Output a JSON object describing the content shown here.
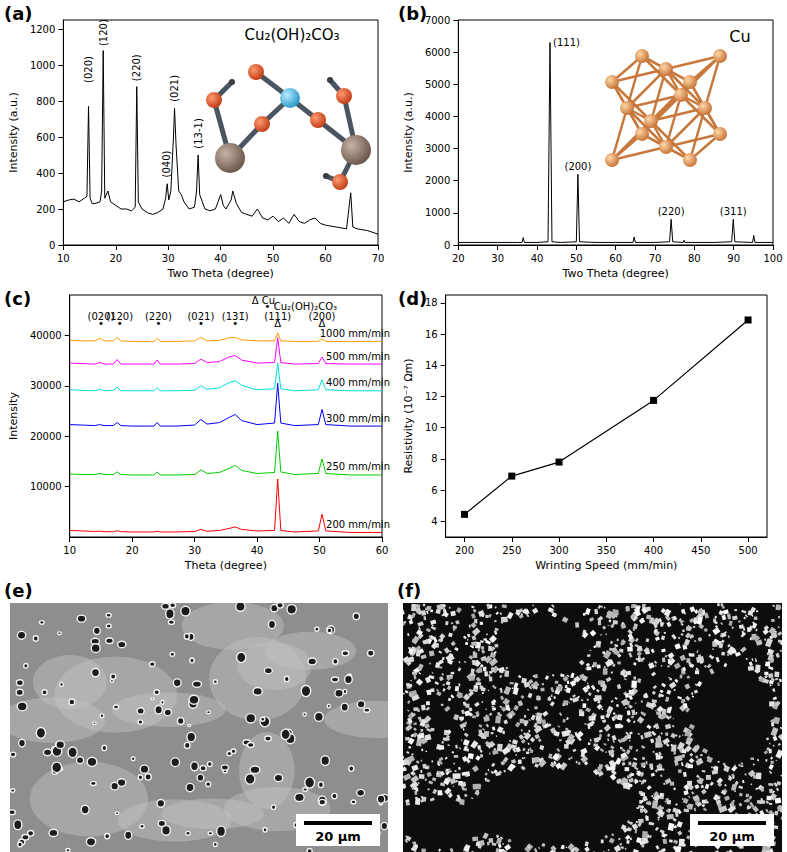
{
  "chart_data": [
    {
      "type": "line",
      "label": "(a)",
      "title": "Cu₂(OH)₂CO₃",
      "x_label": "Two Theta (degree)",
      "y_label": "Intensity (a.u.)",
      "xlim": [
        10,
        70
      ],
      "xticks": [
        10,
        20,
        30,
        40,
        50,
        60,
        70
      ],
      "ylim": [
        0,
        1250
      ],
      "yticks": [
        0,
        200,
        400,
        600,
        800,
        1000,
        1200
      ],
      "grid": false,
      "color": "#000000",
      "marker": "none",
      "line_style": "solid",
      "x": [
        10,
        11,
        12,
        13,
        14,
        14.5,
        14.8,
        15.1,
        15.5,
        16,
        17,
        17.3,
        17.6,
        17.9,
        18.5,
        19,
        20,
        21,
        22,
        23,
        23.7,
        24,
        24.3,
        25,
        26,
        27,
        28,
        29,
        29.5,
        29.8,
        30.1,
        30.5,
        31,
        31.2,
        31.5,
        32,
        32.5,
        33,
        34,
        35,
        35.4,
        35.7,
        36,
        37,
        38,
        39,
        40,
        40.5,
        41,
        42,
        42.3,
        43,
        44,
        45,
        46,
        47,
        48,
        49,
        50,
        51,
        52,
        53,
        54,
        55,
        56,
        57,
        58,
        59,
        60,
        62,
        64,
        64.8,
        65.2,
        66,
        68,
        70
      ],
      "values": [
        240,
        250,
        255,
        240,
        260,
        270,
        770,
        260,
        230,
        230,
        240,
        300,
        1080,
        260,
        300,
        240,
        220,
        200,
        200,
        190,
        210,
        880,
        240,
        200,
        180,
        170,
        180,
        200,
        260,
        340,
        250,
        300,
        600,
        760,
        550,
        300,
        280,
        240,
        200,
        210,
        300,
        500,
        280,
        200,
        190,
        200,
        280,
        220,
        200,
        250,
        300,
        230,
        180,
        170,
        160,
        200,
        150,
        140,
        160,
        130,
        150,
        120,
        170,
        130,
        120,
        140,
        150,
        120,
        110,
        100,
        90,
        290,
        100,
        90,
        80,
        60
      ],
      "annotations": [
        {
          "text": "(020)",
          "x": 14.8,
          "y": 975
        },
        {
          "text": "(120)",
          "x": 17.6,
          "y": 1180
        },
        {
          "text": "(220)",
          "x": 24,
          "y": 985
        },
        {
          "text": "(040)",
          "x": 29.6,
          "y": 450
        },
        {
          "text": "(021)",
          "x": 31.2,
          "y": 870
        },
        {
          "text": "(13-1)",
          "x": 35.7,
          "y": 620
        }
      ]
    },
    {
      "type": "line",
      "label": "(b)",
      "title": "Cu",
      "x_label": "Two Theta (degree)",
      "y_label": "Intensity (a.u.)",
      "xlim": [
        20,
        100
      ],
      "xticks": [
        20,
        30,
        40,
        50,
        60,
        70,
        80,
        90,
        100
      ],
      "ylim": [
        0,
        7000
      ],
      "yticks": [
        0,
        1000,
        2000,
        3000,
        4000,
        5000,
        6000,
        7000
      ],
      "grid": false,
      "color": "#000000",
      "marker": "none",
      "line_style": "solid",
      "x": [
        20,
        25,
        30,
        35,
        36.2,
        36.5,
        36.8,
        40,
        42.8,
        43.3,
        43.8,
        46,
        50,
        50.4,
        50.8,
        55,
        60,
        64.4,
        64.7,
        65,
        70,
        73.7,
        74.1,
        74.5,
        77.2,
        77.4,
        77.6,
        85,
        89.5,
        89.9,
        90.3,
        94.8,
        95.1,
        95.4,
        100
      ],
      "values": [
        80,
        80,
        80,
        80,
        80,
        230,
        80,
        80,
        100,
        6300,
        100,
        80,
        100,
        2200,
        100,
        80,
        80,
        80,
        250,
        80,
        80,
        100,
        800,
        100,
        80,
        150,
        80,
        80,
        100,
        800,
        100,
        80,
        300,
        80,
        80
      ],
      "annotations": [
        {
          "text": "(111)",
          "x": 47.5,
          "y": 6300
        },
        {
          "text": "(200)",
          "x": 50.4,
          "y": 2450
        },
        {
          "text": "(220)",
          "x": 74.1,
          "y": 1050
        },
        {
          "text": "(311)",
          "x": 89.9,
          "y": 1050
        }
      ]
    },
    {
      "type": "line",
      "label": "(c)",
      "x_label": "Theta (degree)",
      "y_label": "Intensity",
      "xlim": [
        10,
        60
      ],
      "xticks": [
        10,
        20,
        30,
        40,
        50,
        60
      ],
      "ylim": [
        0,
        48000
      ],
      "yticks": [
        10000,
        20000,
        30000,
        40000
      ],
      "grid": false,
      "marker": "none",
      "line_style": "solid",
      "x": [
        10,
        12,
        14,
        14.8,
        15.5,
        17,
        17.6,
        18.2,
        20,
        22,
        23.5,
        24,
        24.5,
        27,
        30,
        31,
        32,
        34,
        35.5,
        36.5,
        37.5,
        40,
        42.8,
        43.3,
        43.8,
        46,
        49.8,
        50.4,
        51,
        55,
        60
      ],
      "series": [
        {
          "name": "200 mm/min",
          "color": "#ff0000",
          "values": [
            1300,
            1200,
            1100,
            1150,
            1050,
            1050,
            1250,
            1050,
            1000,
            1000,
            1000,
            1150,
            1000,
            1000,
            1100,
            1500,
            1150,
            1300,
            1700,
            2000,
            1500,
            1200,
            1300,
            11500,
            1300,
            1000,
            1200,
            4500,
            1200,
            900,
            900
          ]
        },
        {
          "name": "250 mm/min",
          "color": "#00cc00",
          "values": [
            12500,
            12400,
            12400,
            12600,
            12400,
            12400,
            12900,
            12400,
            12300,
            12300,
            12300,
            12900,
            12300,
            12300,
            12400,
            13300,
            12600,
            12800,
            13600,
            14200,
            13200,
            12600,
            12800,
            21000,
            12900,
            12400,
            12600,
            15500,
            12600,
            12300,
            12300
          ]
        },
        {
          "name": "300 mm/min",
          "color": "#0000ff",
          "values": [
            22300,
            22200,
            22100,
            22300,
            22100,
            22100,
            22700,
            22100,
            22000,
            22000,
            22000,
            22700,
            22000,
            22000,
            22200,
            23300,
            22400,
            22700,
            23700,
            24300,
            23100,
            22300,
            22600,
            30500,
            22600,
            22100,
            22300,
            25300,
            22300,
            22000,
            22000
          ]
        },
        {
          "name": "400 mm/min",
          "color": "#00dddd",
          "values": [
            29200,
            29100,
            29000,
            29300,
            29000,
            29100,
            29700,
            29000,
            29000,
            29000,
            29000,
            29600,
            29000,
            29000,
            29100,
            30000,
            29300,
            29600,
            30600,
            31000,
            30100,
            29200,
            29400,
            34500,
            29400,
            29000,
            29200,
            31200,
            29200,
            29000,
            29000
          ]
        },
        {
          "name": "500 mm/min",
          "color": "#ff00ff",
          "values": [
            34500,
            34400,
            34300,
            34600,
            34300,
            34300,
            35200,
            34300,
            34300,
            34300,
            34300,
            35100,
            34300,
            34300,
            34400,
            35300,
            34600,
            34800,
            35700,
            36000,
            35100,
            34500,
            34600,
            39500,
            34600,
            34300,
            34400,
            35700,
            34400,
            34300,
            34300
          ]
        },
        {
          "name": "1000 mm/min",
          "color": "#ff9900",
          "values": [
            39000,
            38900,
            38900,
            39400,
            38900,
            38900,
            39600,
            38900,
            38800,
            38800,
            38800,
            39400,
            38800,
            38800,
            38900,
            39600,
            38900,
            39000,
            39500,
            39600,
            39100,
            38900,
            38900,
            40500,
            38900,
            38800,
            38800,
            39300,
            38800,
            38800,
            38800
          ]
        }
      ],
      "annotations": [
        {
          "text": "Δ Cu",
          "x": 41,
          "y": 47000
        },
        {
          "text": "• Cu₂(OH)₂CO₃",
          "x": 47,
          "y": 45700
        },
        {
          "text": "(020)",
          "x": 15,
          "y": 43800
        },
        {
          "text": "(120)",
          "x": 18,
          "y": 43800
        },
        {
          "text": "(220)",
          "x": 24.2,
          "y": 43800
        },
        {
          "text": "(021)",
          "x": 31,
          "y": 43800
        },
        {
          "text": "(131̄)",
          "x": 36.5,
          "y": 43800
        },
        {
          "text": "(111)",
          "x": 43.3,
          "y": 43800
        },
        {
          "text": "(200)",
          "x": 50.4,
          "y": 43800
        },
        {
          "text": "•",
          "x": 15,
          "y": 42300
        },
        {
          "text": "•",
          "x": 18,
          "y": 42300
        },
        {
          "text": "•",
          "x": 24.2,
          "y": 42300
        },
        {
          "text": "•",
          "x": 31,
          "y": 42300
        },
        {
          "text": "•",
          "x": 36.5,
          "y": 42300
        },
        {
          "text": "Δ",
          "x": 43.3,
          "y": 42300
        },
        {
          "text": "Δ",
          "x": 50.4,
          "y": 42300
        }
      ]
    },
    {
      "type": "line",
      "label": "(d)",
      "x_label": "Wrinting Speed (mm/min)",
      "y_label": "Resistivity (10⁻⁷ Ωm)",
      "xlim": [
        180,
        520
      ],
      "xticks": [
        200,
        250,
        300,
        350,
        400,
        450,
        500
      ],
      "ylim": [
        3,
        18.5
      ],
      "yticks": [
        4,
        6,
        8,
        10,
        12,
        14,
        16,
        18
      ],
      "grid": false,
      "color": "#000000",
      "marker": "square",
      "line_style": "solid",
      "x": [
        200,
        250,
        300,
        400,
        500
      ],
      "values": [
        4.45,
        6.9,
        7.8,
        11.75,
        16.9
      ]
    }
  ],
  "images": [
    {
      "label": "(e)",
      "scale_bar": "20 µm"
    },
    {
      "label": "(f)",
      "scale_bar": "20 µm"
    }
  ]
}
